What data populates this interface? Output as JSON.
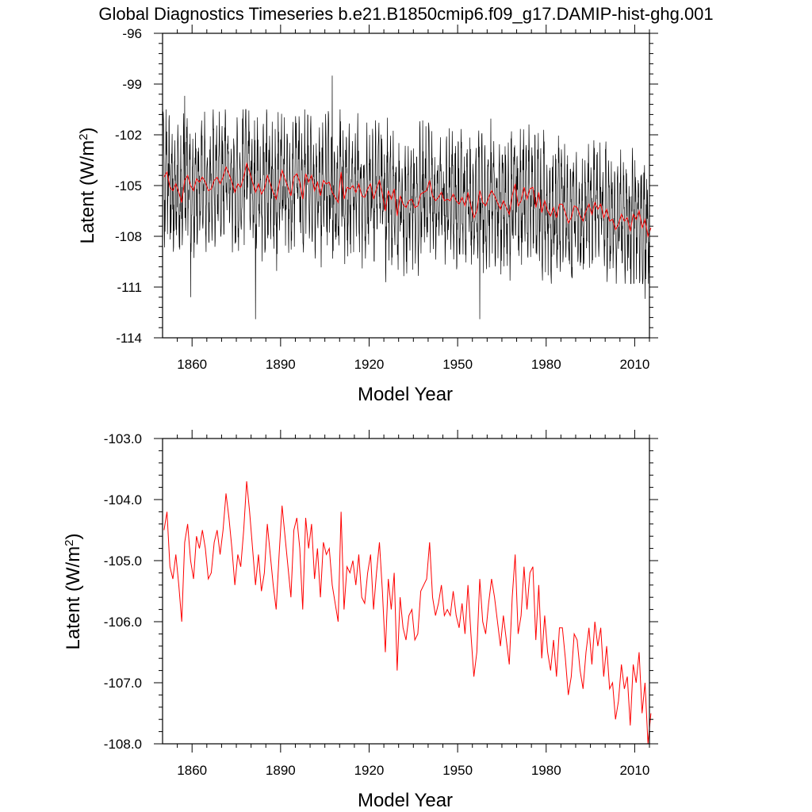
{
  "figure": {
    "title": "Global Diagnostics Timeseries b.e21.B1850cmip6.f09_g17.DAMIP-hist-ghg.001"
  },
  "colors": {
    "monthly": "#000000",
    "annual": "#ff0000",
    "axes": "#000000"
  },
  "chart_data": [
    {
      "type": "line",
      "xlabel": "Model Year",
      "ylabel": "Latent (W/m",
      "ylabel_sup": "2",
      "ylabel_close": ")",
      "xlim": [
        1850,
        2015
      ],
      "ylim": [
        -114,
        -96
      ],
      "xticks": [
        1860,
        1890,
        1920,
        1950,
        1980,
        2010
      ],
      "yticks": [
        -96,
        -99,
        -102,
        -105,
        -108,
        -111,
        -114
      ],
      "ytick_labels": [
        "-96",
        "-99",
        "-102",
        "-105",
        "-108",
        "-111",
        "-114"
      ],
      "series": [
        {
          "type": "monthly",
          "x_start": 1850,
          "x_end": 2015,
          "points_per_year": 12,
          "typical_min": -110,
          "typical_max": -101,
          "mean_start": -105.0,
          "mean_end": -107.0,
          "extremes": [
            [
              1857.5,
              -99.7
            ],
            [
              1907.5,
              -98.5
            ],
            [
              1859.5,
              -111.6
            ],
            [
              1881.5,
              -112.9
            ],
            [
              1957.5,
              -112.9
            ],
            [
              2013.5,
              -111.7
            ]
          ]
        },
        {
          "type": "annual",
          "ref": "annual"
        }
      ],
      "grid": false
    },
    {
      "type": "line",
      "xlabel": "Model Year",
      "ylabel": "Latent (W/m",
      "ylabel_sup": "2",
      "ylabel_close": ")",
      "xlim": [
        1850,
        2015
      ],
      "ylim": [
        -108.0,
        -103.0
      ],
      "xticks": [
        1860,
        1890,
        1920,
        1950,
        1980,
        2010
      ],
      "yticks": [
        -103.0,
        -104.0,
        -105.0,
        -106.0,
        -107.0,
        -108.0
      ],
      "ytick_labels": [
        "-103.0",
        "-104.0",
        "-105.0",
        "-106.0",
        "-107.0",
        "-108.0"
      ],
      "grid": false
    }
  ],
  "annual": {
    "x_start": 1850,
    "values": [
      -104.5,
      -104.2,
      -105.1,
      -105.3,
      -104.9,
      -105.4,
      -106.0,
      -104.7,
      -104.4,
      -105.0,
      -105.3,
      -104.6,
      -104.8,
      -104.5,
      -104.8,
      -105.3,
      -105.2,
      -104.7,
      -104.5,
      -104.9,
      -104.5,
      -103.9,
      -104.3,
      -104.8,
      -105.4,
      -104.9,
      -105.1,
      -104.5,
      -103.7,
      -104.2,
      -104.8,
      -105.4,
      -104.9,
      -105.5,
      -105.2,
      -104.4,
      -104.9,
      -105.4,
      -105.8,
      -104.9,
      -104.1,
      -104.6,
      -105.1,
      -105.6,
      -104.5,
      -104.3,
      -104.8,
      -105.8,
      -104.3,
      -104.8,
      -104.4,
      -105.3,
      -104.8,
      -105.6,
      -104.7,
      -104.9,
      -104.8,
      -105.4,
      -105.7,
      -106.0,
      -104.2,
      -105.8,
      -105.1,
      -105.2,
      -105.0,
      -105.4,
      -104.9,
      -105.6,
      -105.7,
      -105.2,
      -104.9,
      -105.8,
      -105.2,
      -104.7,
      -105.5,
      -106.5,
      -105.3,
      -105.8,
      -105.2,
      -106.8,
      -105.6,
      -106.1,
      -106.3,
      -105.9,
      -105.8,
      -106.3,
      -106.2,
      -105.5,
      -105.4,
      -105.3,
      -104.7,
      -105.6,
      -105.9,
      -105.7,
      -105.4,
      -105.9,
      -105.8,
      -105.9,
      -105.5,
      -105.9,
      -106.1,
      -105.7,
      -106.2,
      -105.4,
      -106.2,
      -106.9,
      -106.5,
      -105.3,
      -106.0,
      -106.2,
      -105.7,
      -105.3,
      -105.6,
      -106.0,
      -106.4,
      -105.9,
      -106.3,
      -106.7,
      -105.6,
      -104.9,
      -106.2,
      -105.9,
      -105.1,
      -105.8,
      -105.2,
      -105.1,
      -106.3,
      -105.4,
      -106.6,
      -105.9,
      -106.5,
      -106.8,
      -106.3,
      -106.9,
      -106.1,
      -106.1,
      -106.6,
      -107.2,
      -106.9,
      -106.2,
      -106.3,
      -106.8,
      -107.1,
      -106.5,
      -106.1,
      -106.7,
      -106.0,
      -106.4,
      -106.1,
      -106.9,
      -106.4,
      -107.1,
      -107.0,
      -107.6,
      -107.3,
      -106.7,
      -107.1,
      -106.9,
      -107.7,
      -106.7,
      -107.0,
      -106.5,
      -107.5,
      -107.0,
      -108.0,
      -107.5
    ]
  }
}
